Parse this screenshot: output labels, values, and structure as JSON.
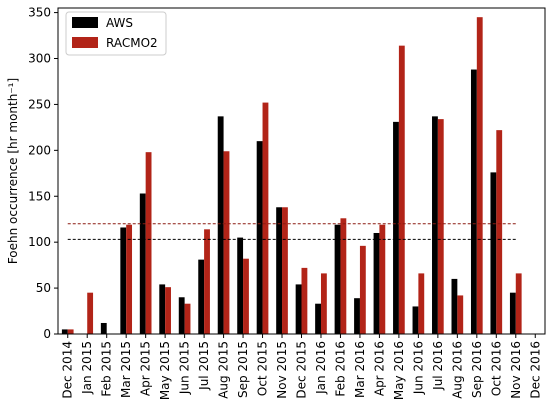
{
  "chart_data": {
    "type": "bar",
    "title": "",
    "xlabel": "",
    "ylabel": "Foehn occurrence [hr month⁻¹]",
    "ylim": [
      0,
      355
    ],
    "yticks": [
      0,
      50,
      100,
      150,
      200,
      250,
      300,
      350
    ],
    "grid": false,
    "legend_position": "top-left",
    "categories": [
      "Dec 2014",
      "Jan 2015",
      "Feb 2015",
      "Mar 2015",
      "Apr 2015",
      "May 2015",
      "Jun 2015",
      "Jul 2015",
      "Aug 2015",
      "Sep 2015",
      "Oct 2015",
      "Nov 2015",
      "Dec 2015",
      "Jan 2016",
      "Feb 2016",
      "Mar 2016",
      "Apr 2016",
      "May 2016",
      "Jun 2016",
      "Jul 2016",
      "Aug 2016",
      "Sep 2016",
      "Oct 2016",
      "Nov 2016",
      "Dec 2016"
    ],
    "series": [
      {
        "name": "AWS",
        "color": "#000000",
        "values": [
          5,
          0,
          12,
          116,
          153,
          54,
          40,
          81,
          237,
          105,
          210,
          138,
          54,
          33,
          119,
          39,
          110,
          231,
          30,
          237,
          60,
          288,
          176,
          45,
          0
        ]
      },
      {
        "name": "RACMO2",
        "color": "#b22418",
        "values": [
          5,
          45,
          0,
          119,
          198,
          51,
          33,
          114,
          199,
          82,
          252,
          138,
          72,
          66,
          126,
          96,
          119,
          314,
          66,
          234,
          42,
          345,
          222,
          66,
          0
        ]
      }
    ],
    "reference_lines": [
      {
        "series": "AWS",
        "value": 103,
        "color": "#000000",
        "style": "dashed"
      },
      {
        "series": "RACMO2",
        "value": 120,
        "color": "#8b1a10",
        "style": "dashed"
      }
    ]
  }
}
